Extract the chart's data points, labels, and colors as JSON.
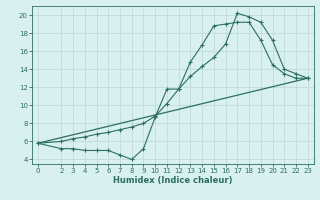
{
  "xlabel": "Humidex (Indice chaleur)",
  "bg_color": "#d8f0ee",
  "grid_color": "#c2dbd8",
  "line_color": "#2d6e63",
  "xlim": [
    -0.5,
    23.5
  ],
  "ylim": [
    3.5,
    21.0
  ],
  "xticks": [
    0,
    2,
    3,
    4,
    5,
    6,
    7,
    8,
    9,
    10,
    11,
    12,
    13,
    14,
    15,
    16,
    17,
    18,
    19,
    20,
    21,
    22,
    23
  ],
  "yticks": [
    4,
    6,
    8,
    10,
    12,
    14,
    16,
    18,
    20
  ],
  "line1_x": [
    0,
    23
  ],
  "line1_y": [
    5.8,
    13.0
  ],
  "line2_x": [
    0,
    2,
    3,
    4,
    5,
    6,
    7,
    8,
    9,
    10,
    11,
    12,
    13,
    14,
    15,
    16,
    17,
    18,
    19,
    20,
    21,
    22,
    23
  ],
  "line2_y": [
    5.8,
    5.2,
    5.2,
    5.0,
    5.0,
    5.0,
    4.5,
    4.0,
    5.2,
    8.7,
    11.8,
    11.8,
    14.8,
    16.7,
    18.8,
    19.0,
    19.2,
    19.2,
    17.2,
    14.5,
    13.5,
    13.0,
    13.0
  ],
  "line3_x": [
    0,
    2,
    3,
    4,
    5,
    6,
    7,
    8,
    9,
    10,
    11,
    12,
    13,
    14,
    15,
    16,
    17,
    18,
    19,
    20,
    21,
    22,
    23
  ],
  "line3_y": [
    5.8,
    6.0,
    6.3,
    6.5,
    6.8,
    7.0,
    7.3,
    7.6,
    8.0,
    8.8,
    10.2,
    11.8,
    13.2,
    14.3,
    15.3,
    16.8,
    20.2,
    19.8,
    19.2,
    17.2,
    14.0,
    13.5,
    13.0
  ],
  "xlabel_fontsize": 6.0,
  "tick_fontsize": 5.0
}
